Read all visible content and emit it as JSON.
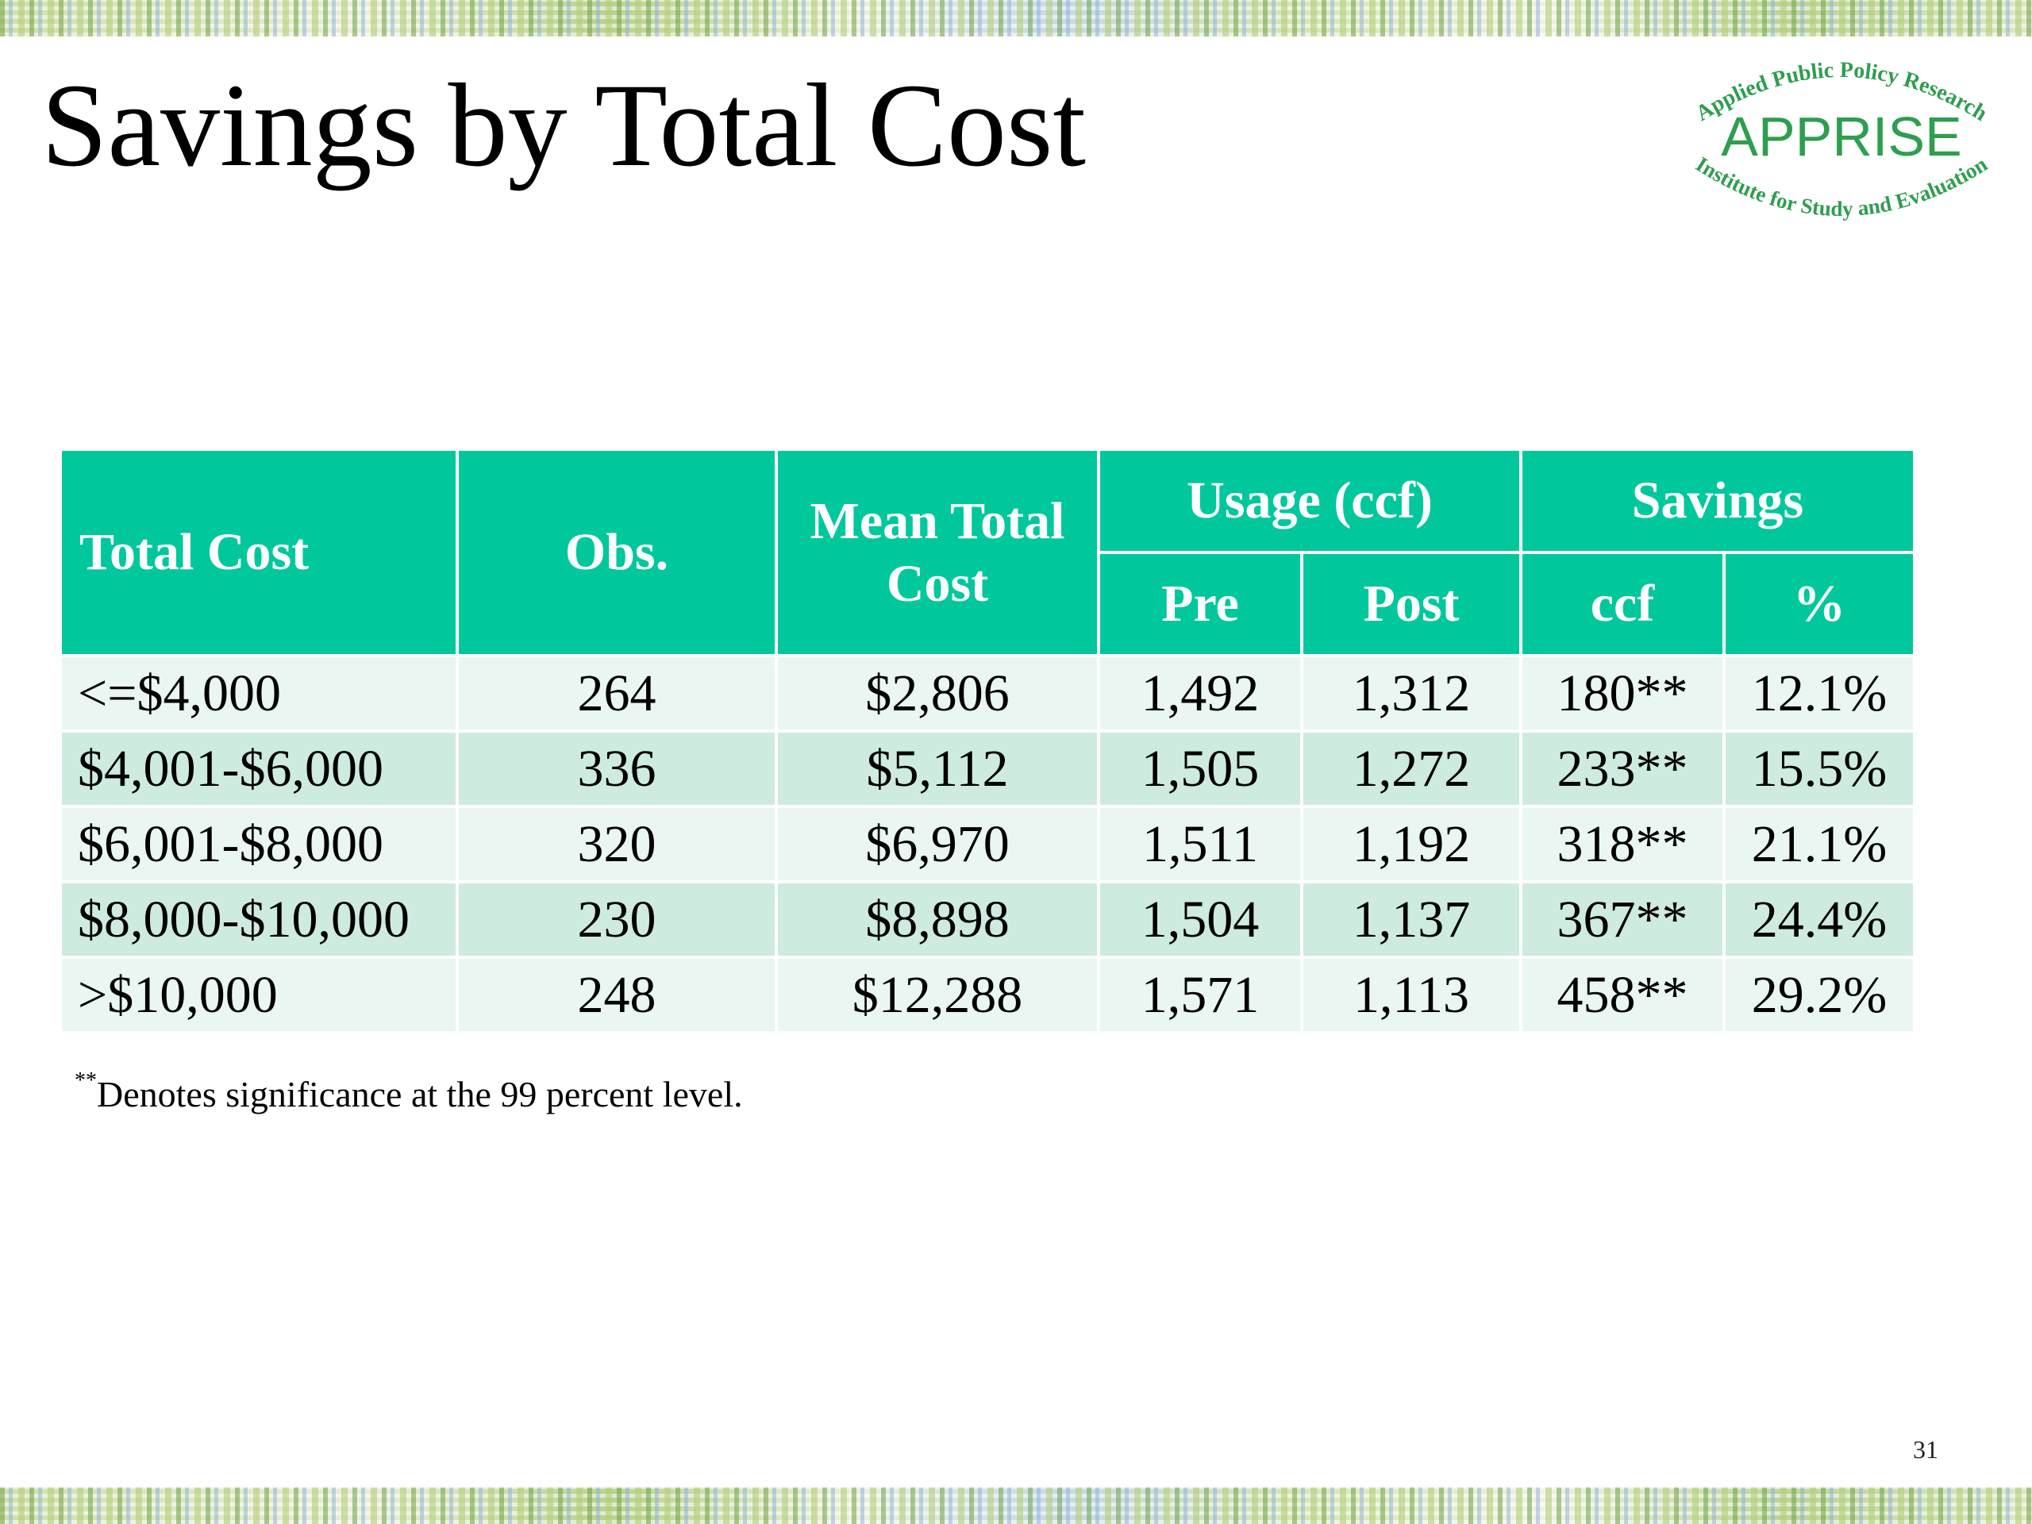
{
  "slide": {
    "title": "Savings by Total Cost",
    "page_number": "31"
  },
  "logo": {
    "top_text": "Applied Public Policy Research",
    "name": "APPRISE",
    "bottom_text": "Institute for Study and Evaluation",
    "color": "#2e9e4f"
  },
  "table": {
    "headers": {
      "total_cost": "Total Cost",
      "obs": "Obs.",
      "mean_total_cost": "Mean Total Cost",
      "usage_group": "Usage (ccf)",
      "savings_group": "Savings",
      "pre": "Pre",
      "post": "Post",
      "ccf": "ccf",
      "pct": "%"
    },
    "rows": [
      {
        "total_cost": "<=$4,000",
        "obs": "264",
        "mean": "$2,806",
        "pre": "1,492",
        "post": "1,312",
        "ccf": "180**",
        "pct": "12.1%"
      },
      {
        "total_cost": "$4,001-$6,000",
        "obs": "336",
        "mean": "$5,112",
        "pre": "1,505",
        "post": "1,272",
        "ccf": "233**",
        "pct": "15.5%"
      },
      {
        "total_cost": "$6,001-$8,000",
        "obs": "320",
        "mean": "$6,970",
        "pre": "1,511",
        "post": "1,192",
        "ccf": "318**",
        "pct": "21.1%"
      },
      {
        "total_cost": "$8,000-$10,000",
        "obs": "230",
        "mean": "$8,898",
        "pre": "1,504",
        "post": "1,137",
        "ccf": "367**",
        "pct": "24.4%"
      },
      {
        "total_cost": ">$10,000",
        "obs": "248",
        "mean": "$12,288",
        "pre": "1,571",
        "post": "1,113",
        "ccf": "458**",
        "pct": "29.2%"
      }
    ],
    "header_color": "#00c89c",
    "row_colors": [
      "#e9f6f1",
      "#cdebde"
    ]
  },
  "footnote": {
    "marker": "**",
    "text": "Denotes significance at the 99 percent level."
  }
}
